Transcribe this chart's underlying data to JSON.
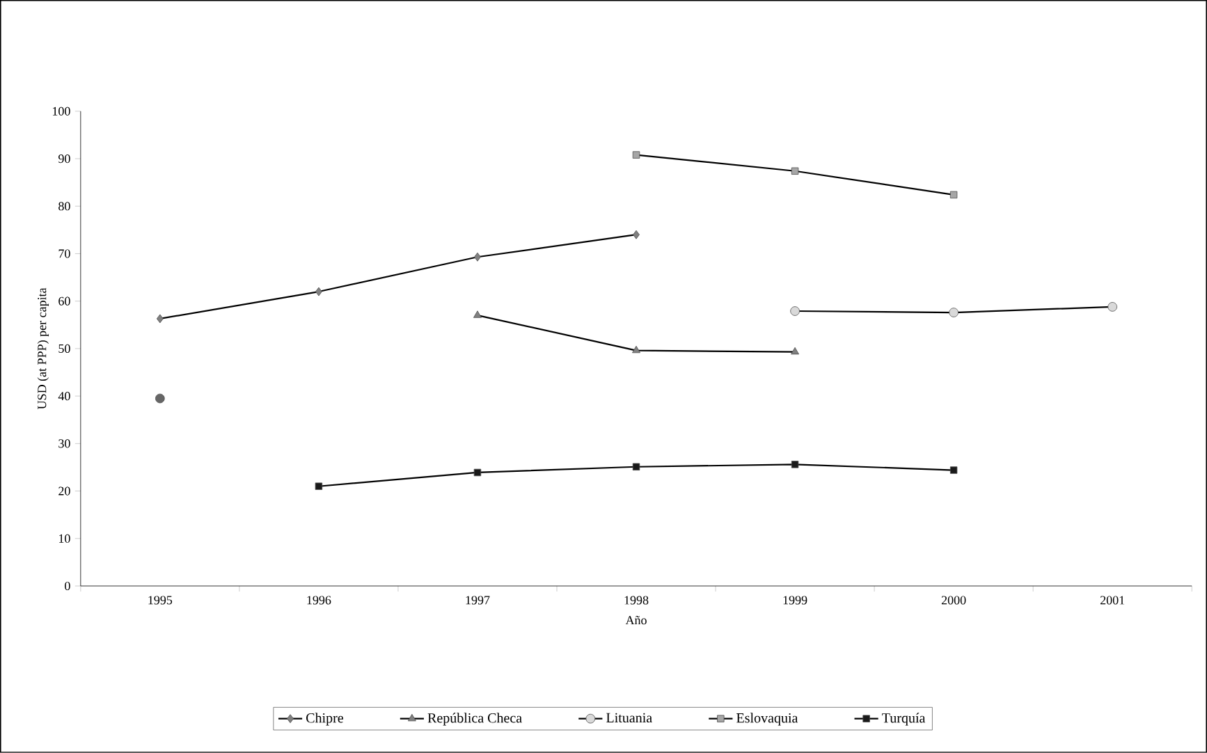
{
  "chart_data": {
    "type": "line",
    "xlabel": "Año",
    "ylabel": "USD (at PPP) per capita",
    "categories": [
      "1995",
      "1996",
      "1997",
      "1998",
      "1999",
      "2000",
      "2001"
    ],
    "ylim": [
      0,
      100
    ],
    "yticks": [
      0,
      10,
      20,
      30,
      40,
      50,
      60,
      70,
      80,
      90,
      100
    ],
    "grid": false,
    "legend": "bottom",
    "series": [
      {
        "name": "Chipre",
        "color": "#808080",
        "marker": "diamond",
        "values": [
          56.3,
          62,
          69.3,
          74,
          null,
          null,
          null
        ]
      },
      {
        "name": "República Checa",
        "color": "#808080",
        "marker": "triangle",
        "values": [
          null,
          null,
          57,
          49.6,
          49.3,
          null,
          null
        ]
      },
      {
        "name": "Lituania",
        "color": "#d9d9d9",
        "marker": "circle",
        "values": [
          null,
          null,
          null,
          null,
          57.9,
          57.6,
          58.8
        ]
      },
      {
        "name": "Eslovaquia",
        "color": "#a6a6a6",
        "marker": "square",
        "values": [
          null,
          null,
          null,
          90.8,
          87.4,
          82.4,
          null
        ]
      },
      {
        "name": "Turquía",
        "color": "#1a1a1a",
        "marker": "square",
        "values": [
          null,
          21,
          23.9,
          25.1,
          25.6,
          24.4,
          null
        ]
      },
      {
        "type": "scatter",
        "color": "#666666",
        "marker": "circle",
        "values": [
          39.5,
          null,
          null,
          null,
          null,
          null,
          null
        ]
      }
    ]
  }
}
